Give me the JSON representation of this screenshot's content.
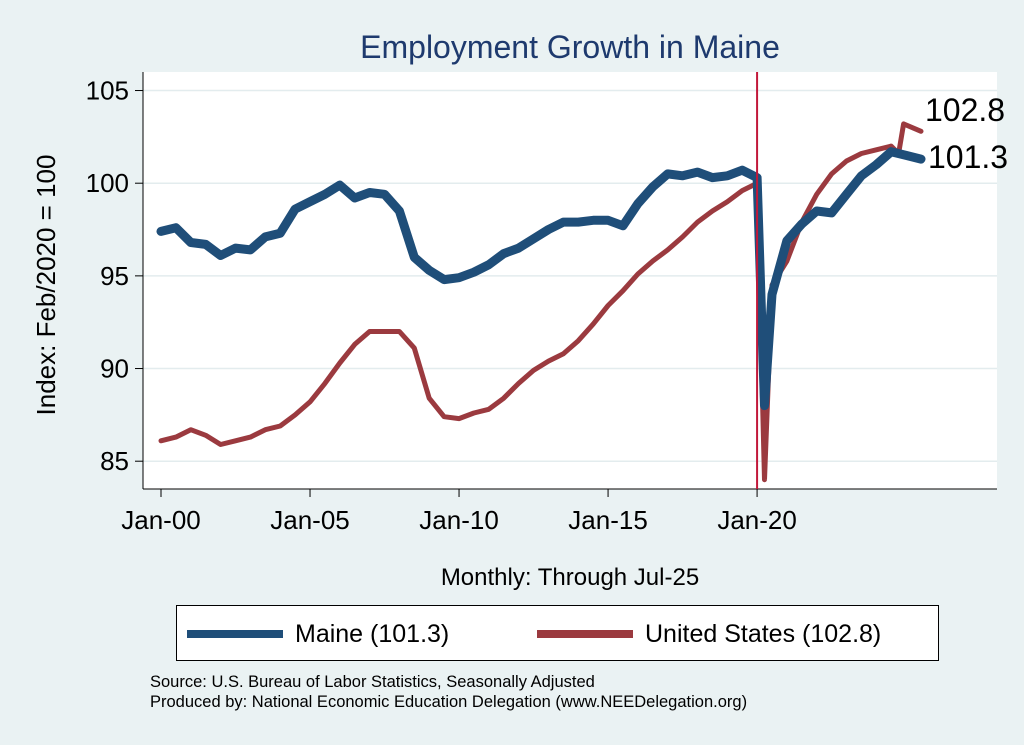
{
  "chart_data": {
    "type": "line",
    "title": "Employment Growth in Maine",
    "xlabel": "Monthly: Through Jul-25",
    "ylabel": "Index: Feb/2020 = 100",
    "x_ticks": [
      "Jan-00",
      "Jan-05",
      "Jan-10",
      "Jan-15",
      "Jan-20"
    ],
    "y_ticks": [
      85,
      90,
      95,
      100,
      105
    ],
    "ylim": [
      83.5,
      106
    ],
    "x_range": [
      "Jan-00",
      "Jul-25"
    ],
    "reference_line": {
      "x": "Jan-20",
      "color": "#c2183a"
    },
    "grid": "horizontal",
    "end_labels": [
      "102.8",
      "101.3"
    ],
    "series": [
      {
        "name": "Maine (101.3)",
        "color": "#1f4e79",
        "points": [
          [
            "Jan-00",
            97.4
          ],
          [
            "Jul-00",
            97.6
          ],
          [
            "Jan-01",
            96.8
          ],
          [
            "Jul-01",
            96.7
          ],
          [
            "Jan-02",
            96.1
          ],
          [
            "Jul-02",
            96.5
          ],
          [
            "Jan-03",
            96.4
          ],
          [
            "Jul-03",
            97.1
          ],
          [
            "Jan-04",
            97.3
          ],
          [
            "Jul-04",
            98.6
          ],
          [
            "Jan-05",
            99.0
          ],
          [
            "Jul-05",
            99.4
          ],
          [
            "Jan-06",
            99.9
          ],
          [
            "Jul-06",
            99.2
          ],
          [
            "Jan-07",
            99.5
          ],
          [
            "Jul-07",
            99.4
          ],
          [
            "Jan-08",
            98.5
          ],
          [
            "Jul-08",
            96.0
          ],
          [
            "Jan-09",
            95.3
          ],
          [
            "Jul-09",
            94.8
          ],
          [
            "Jan-10",
            94.9
          ],
          [
            "Jul-10",
            95.2
          ],
          [
            "Jan-11",
            95.6
          ],
          [
            "Jul-11",
            96.2
          ],
          [
            "Jan-12",
            96.5
          ],
          [
            "Jul-12",
            97.0
          ],
          [
            "Jan-13",
            97.5
          ],
          [
            "Jul-13",
            97.9
          ],
          [
            "Jan-14",
            97.9
          ],
          [
            "Jul-14",
            98.0
          ],
          [
            "Jan-15",
            98.0
          ],
          [
            "Jul-15",
            97.7
          ],
          [
            "Jan-16",
            98.9
          ],
          [
            "Jul-16",
            99.8
          ],
          [
            "Jan-17",
            100.5
          ],
          [
            "Jul-17",
            100.4
          ],
          [
            "Jan-18",
            100.6
          ],
          [
            "Jul-18",
            100.3
          ],
          [
            "Jan-19",
            100.4
          ],
          [
            "Jul-19",
            100.7
          ],
          [
            "Jan-20",
            100.3
          ],
          [
            "Apr-20",
            88.0
          ],
          [
            "Jul-20",
            94.0
          ],
          [
            "Jan-21",
            96.9
          ],
          [
            "Jul-21",
            97.8
          ],
          [
            "Jan-22",
            98.5
          ],
          [
            "Jul-22",
            98.4
          ],
          [
            "Jan-23",
            99.4
          ],
          [
            "Jul-23",
            100.4
          ],
          [
            "Jan-24",
            101.0
          ],
          [
            "Jul-24",
            101.7
          ],
          [
            "Jan-25",
            101.5
          ],
          [
            "Jul-25",
            101.3
          ]
        ]
      },
      {
        "name": "United States (102.8)",
        "color": "#9b3a3f",
        "points": [
          [
            "Jan-00",
            86.1
          ],
          [
            "Jul-00",
            86.3
          ],
          [
            "Jan-01",
            86.7
          ],
          [
            "Jul-01",
            86.4
          ],
          [
            "Jan-02",
            85.9
          ],
          [
            "Jul-02",
            86.1
          ],
          [
            "Jan-03",
            86.3
          ],
          [
            "Jul-03",
            86.7
          ],
          [
            "Jan-04",
            86.9
          ],
          [
            "Jul-04",
            87.5
          ],
          [
            "Jan-05",
            88.2
          ],
          [
            "Jul-05",
            89.2
          ],
          [
            "Jan-06",
            90.3
          ],
          [
            "Jul-06",
            91.3
          ],
          [
            "Jan-07",
            92.0
          ],
          [
            "Jul-07",
            92.0
          ],
          [
            "Jan-08",
            92.0
          ],
          [
            "Jul-08",
            91.1
          ],
          [
            "Jan-09",
            88.4
          ],
          [
            "Jul-09",
            87.4
          ],
          [
            "Jan-10",
            87.3
          ],
          [
            "Jul-10",
            87.6
          ],
          [
            "Jan-11",
            87.8
          ],
          [
            "Jul-11",
            88.4
          ],
          [
            "Jan-12",
            89.2
          ],
          [
            "Jul-12",
            89.9
          ],
          [
            "Jan-13",
            90.4
          ],
          [
            "Jul-13",
            90.8
          ],
          [
            "Jan-14",
            91.5
          ],
          [
            "Jul-14",
            92.4
          ],
          [
            "Jan-15",
            93.4
          ],
          [
            "Jul-15",
            94.2
          ],
          [
            "Jan-16",
            95.1
          ],
          [
            "Jul-16",
            95.8
          ],
          [
            "Jan-17",
            96.4
          ],
          [
            "Jul-17",
            97.1
          ],
          [
            "Jan-18",
            97.9
          ],
          [
            "Jul-18",
            98.5
          ],
          [
            "Jan-19",
            99.0
          ],
          [
            "Jul-19",
            99.6
          ],
          [
            "Jan-20",
            100.0
          ],
          [
            "Apr-20",
            84.0
          ],
          [
            "Jul-20",
            94.5
          ],
          [
            "Jan-21",
            95.8
          ],
          [
            "Jul-21",
            97.9
          ],
          [
            "Jan-22",
            99.4
          ],
          [
            "Jul-22",
            100.5
          ],
          [
            "Jan-23",
            101.2
          ],
          [
            "Jul-23",
            101.6
          ],
          [
            "Jan-24",
            101.8
          ],
          [
            "Jul-24",
            102.0
          ],
          [
            "Oct-24",
            101.6
          ],
          [
            "Dec-24",
            103.2
          ],
          [
            "Jul-25",
            102.8
          ]
        ]
      }
    ]
  },
  "legend": [
    {
      "label": "Maine (101.3)",
      "color": "#1f4e79"
    },
    {
      "label": "United States (102.8)",
      "color": "#9b3a3f"
    }
  ],
  "footer": {
    "source": "Source: U.S. Bureau of Labor Statistics, Seasonally Adjusted",
    "produced": "Produced by: National Economic Education Delegation (www.NEEDelegation.org)"
  }
}
